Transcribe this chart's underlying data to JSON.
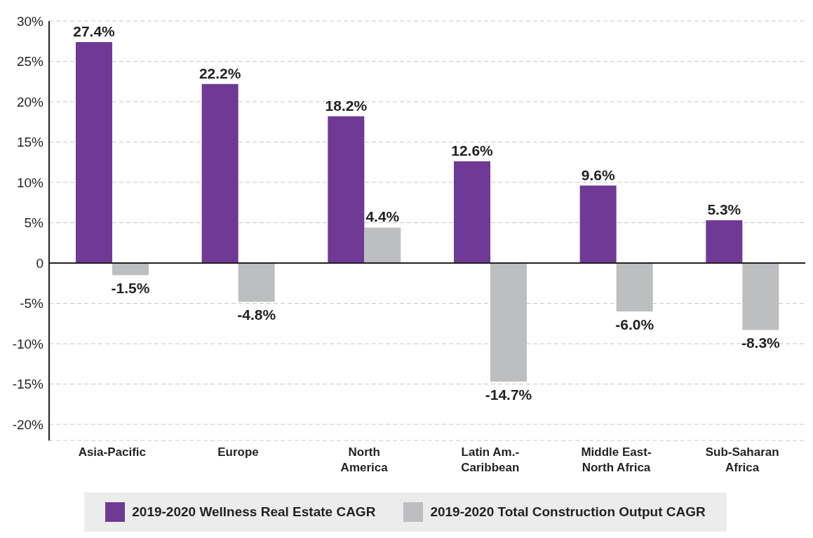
{
  "chart_data": {
    "type": "bar",
    "categories": [
      "Asia-Pacific",
      "Europe",
      "North\nAmerica",
      "Latin Am.-\nCaribbean",
      "Middle East-\nNorth Africa",
      "Sub-Saharan\nAfrica"
    ],
    "series": [
      {
        "name": "2019-2020 Wellness Real Estate CAGR",
        "color": "#6f3996",
        "values": [
          27.4,
          22.2,
          18.2,
          12.6,
          9.6,
          5.3
        ],
        "value_labels": [
          "27.4%",
          "22.2%",
          "18.2%",
          "12.6%",
          "9.6%",
          "5.3%"
        ]
      },
      {
        "name": "2019-2020 Total Construction Output CAGR",
        "color": "#bcbec0",
        "values": [
          -1.5,
          -4.8,
          4.4,
          -14.7,
          -6.0,
          -8.3
        ],
        "value_labels": [
          "-1.5%",
          "-4.8%",
          "4.4%",
          "-14.7%",
          "-6.0%",
          "-8.3%"
        ]
      }
    ],
    "ylim": [
      -22,
      30
    ],
    "yticks": [
      {
        "value": 30,
        "label": "30%"
      },
      {
        "value": 25,
        "label": "25%"
      },
      {
        "value": 20,
        "label": "20%"
      },
      {
        "value": 15,
        "label": "15%"
      },
      {
        "value": 10,
        "label": "10%"
      },
      {
        "value": 5,
        "label": "5%"
      },
      {
        "value": 0,
        "label": "0"
      },
      {
        "value": -5,
        "label": "-5%"
      },
      {
        "value": -10,
        "label": "-10%"
      },
      {
        "value": -15,
        "label": "-15%"
      },
      {
        "value": -20,
        "label": "-20%"
      }
    ],
    "grid": "y",
    "legend": "bottom"
  }
}
